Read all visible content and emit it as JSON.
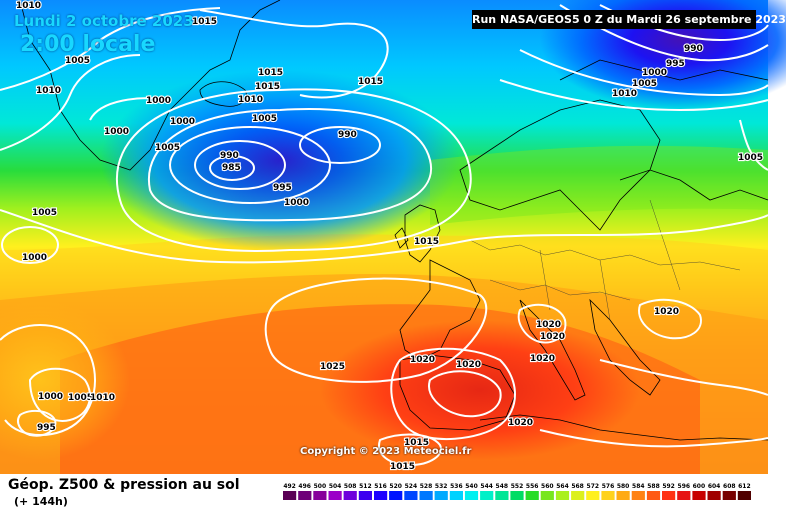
{
  "header": {
    "date": "Lundi 2 octobre 2023",
    "time": "2:00 locale",
    "run": "Run NASA/GEOS5 0 Z du Mardi 26 septembre 2023"
  },
  "copyright": "Copyright © 2023 Meteociel.fr",
  "legend": {
    "title": "Géop. Z500 & pression au sol",
    "subtitle": "(+ 144h)",
    "levels": [
      "492",
      "496",
      "500",
      "504",
      "508",
      "512",
      "516",
      "520",
      "524",
      "528",
      "532",
      "536",
      "540",
      "544",
      "548",
      "552",
      "556",
      "560",
      "564",
      "568",
      "572",
      "576",
      "580",
      "584",
      "588",
      "592",
      "596",
      "600",
      "604",
      "608",
      "612"
    ],
    "colors": [
      "#5a0055",
      "#6e0078",
      "#87009b",
      "#9b00c8",
      "#6e00dc",
      "#3c00f0",
      "#1e00ff",
      "#0014ff",
      "#0046ff",
      "#0078ff",
      "#00aaff",
      "#00d2ff",
      "#00f0f0",
      "#00f0c8",
      "#00e696",
      "#00dc64",
      "#28dc28",
      "#78e61e",
      "#aaf01e",
      "#dcf01e",
      "#fff01e",
      "#ffd21e",
      "#ffaa14",
      "#ff8214",
      "#ff5a14",
      "#ff3214",
      "#e61414",
      "#c80000",
      "#a00000",
      "#780000",
      "#500000"
    ]
  },
  "isobar_labels": [
    {
      "text": "1010",
      "id": "tl-1010"
    },
    {
      "text": "1015",
      "id": "top-1015"
    },
    {
      "text": "1005",
      "id": "left-1005"
    },
    {
      "text": "1010",
      "id": "left-1010"
    },
    {
      "text": "1000",
      "id": "left-1000a"
    },
    {
      "text": "1000",
      "id": "left-1000b"
    },
    {
      "text": "1000",
      "id": "center-1000a"
    },
    {
      "text": "1005",
      "id": "center-1005a"
    },
    {
      "text": "1015",
      "id": "island-1015a"
    },
    {
      "text": "1015",
      "id": "island-1015b"
    },
    {
      "text": "1010",
      "id": "island-1010"
    },
    {
      "text": "1005",
      "id": "center-1005b"
    },
    {
      "text": "990",
      "id": "low-990a"
    },
    {
      "text": "990",
      "id": "low-990b"
    },
    {
      "text": "985",
      "id": "low-985"
    },
    {
      "text": "995",
      "id": "low-995"
    },
    {
      "text": "1000",
      "id": "center-1000b"
    },
    {
      "text": "1015",
      "id": "mid-1015"
    },
    {
      "text": "990",
      "id": "ne-990"
    },
    {
      "text": "995",
      "id": "ne-995"
    },
    {
      "text": "1000",
      "id": "ne-1000"
    },
    {
      "text": "1005",
      "id": "ne-1005a"
    },
    {
      "text": "1010",
      "id": "ne-1010"
    },
    {
      "text": "1005",
      "id": "east-1005"
    },
    {
      "text": "1005",
      "id": "west-1005"
    },
    {
      "text": "1000",
      "id": "west-1000"
    },
    {
      "text": "1015",
      "id": "europe-1015"
    },
    {
      "text": "1025",
      "id": "atl-1025"
    },
    {
      "text": "1020",
      "id": "iberia-1020"
    },
    {
      "text": "1020",
      "id": "med-1020a"
    },
    {
      "text": "1020",
      "id": "alps-1020a"
    },
    {
      "text": "1020",
      "id": "alps-1020b"
    },
    {
      "text": "1020",
      "id": "med-1020b"
    },
    {
      "text": "1020",
      "id": "east-1020"
    },
    {
      "text": "1020",
      "id": "africa-1020"
    },
    {
      "text": "1000",
      "id": "sw-1000"
    },
    {
      "text": "1005",
      "id": "sw-1005"
    },
    {
      "text": "1010",
      "id": "sw-1010"
    },
    {
      "text": "995",
      "id": "sw-995"
    },
    {
      "text": "1015",
      "id": "sahara-1015a"
    },
    {
      "text": "1015",
      "id": "sahara-1015b"
    }
  ]
}
